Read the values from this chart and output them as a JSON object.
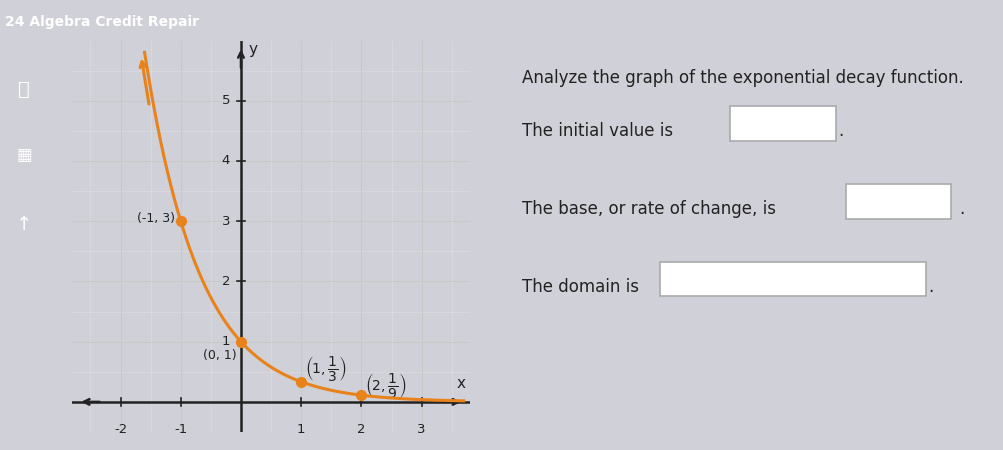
{
  "title": "24 Algebra Credit Repair",
  "title_bar_color": "#5b6bbf",
  "title_text_color": "#ffffff",
  "fig_bg_color": "#d0d0d8",
  "graph_bg_color": "#ffffff",
  "right_panel_bg": "#f2f2f2",
  "left_sidebar_bg": "#888899",
  "curve_color": "#e8821a",
  "curve_linewidth": 2.2,
  "point_color": "#e8821a",
  "point_size": 7,
  "points": [
    [
      -1,
      3
    ],
    [
      0,
      1
    ],
    [
      1,
      0.3333
    ],
    [
      2,
      0.1111
    ]
  ],
  "xlim": [
    -2.8,
    3.8
  ],
  "ylim": [
    -0.5,
    6.0
  ],
  "xtick_vals": [
    -2,
    -1,
    1,
    2,
    3
  ],
  "ytick_vals": [
    1,
    2,
    3,
    4,
    5
  ],
  "grid_color": "#c8c8c8",
  "axis_color": "#222222",
  "text_color": "#222222"
}
